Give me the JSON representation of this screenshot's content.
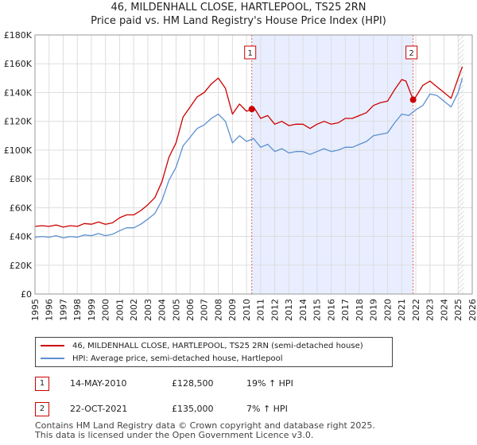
{
  "chart_data": {
    "type": "line",
    "title": "46, MILDENHALL CLOSE, HARTLEPOOL, TS25 2RN",
    "subtitle": "Price paid vs. HM Land Registry's House Price Index (HPI)",
    "xlabel": "",
    "ylabel": "",
    "xlim": [
      1995,
      2026
    ],
    "ylim": [
      0,
      180000
    ],
    "x_ticks": [
      "1995",
      "1996",
      "1997",
      "1998",
      "1999",
      "2000",
      "2001",
      "2002",
      "2003",
      "2004",
      "2005",
      "2006",
      "2007",
      "2008",
      "2009",
      "2010",
      "2011",
      "2012",
      "2013",
      "2014",
      "2015",
      "2016",
      "2017",
      "2018",
      "2019",
      "2020",
      "2021",
      "2022",
      "2023",
      "2024",
      "2025",
      "2026"
    ],
    "y_ticks": [
      {
        "value": 0,
        "label": "£0"
      },
      {
        "value": 20000,
        "label": "£20K"
      },
      {
        "value": 40000,
        "label": "£40K"
      },
      {
        "value": 60000,
        "label": "£60K"
      },
      {
        "value": 80000,
        "label": "£80K"
      },
      {
        "value": 100000,
        "label": "£100K"
      },
      {
        "value": 120000,
        "label": "£120K"
      },
      {
        "value": 140000,
        "label": "£140K"
      },
      {
        "value": 160000,
        "label": "£160K"
      },
      {
        "value": 180000,
        "label": "£180K"
      }
    ],
    "shaded_period": [
      2010.37,
      2021.81
    ],
    "future_hatch_from": 2025.0,
    "series": [
      {
        "name": "46, MILDENHALL CLOSE, HARTLEPOOL, TS25 2RN (semi-detached house)",
        "color": "#cc0000",
        "x": [
          1995,
          1995.5,
          1996,
          1996.5,
          1997,
          1997.5,
          1998,
          1998.5,
          1999,
          1999.5,
          2000,
          2000.5,
          2001,
          2001.5,
          2002,
          2002.5,
          2003,
          2003.5,
          2004,
          2004.5,
          2005,
          2005.5,
          2006,
          2006.5,
          2007,
          2007.5,
          2008,
          2008.5,
          2009,
          2009.5,
          2010,
          2010.37,
          2010.5,
          2011,
          2011.5,
          2012,
          2012.5,
          2013,
          2013.5,
          2014,
          2014.5,
          2015,
          2015.5,
          2016,
          2016.5,
          2017,
          2017.5,
          2018,
          2018.5,
          2019,
          2019.5,
          2020,
          2020.5,
          2021,
          2021.3,
          2021.81,
          2022,
          2022.5,
          2023,
          2023.5,
          2024,
          2024.5,
          2025,
          2025.3
        ],
        "values": [
          47000,
          47500,
          47000,
          48000,
          46500,
          47500,
          47000,
          49000,
          48500,
          50000,
          48500,
          49500,
          53000,
          55000,
          55000,
          58000,
          62000,
          67000,
          78000,
          95000,
          105000,
          123000,
          130000,
          137000,
          140000,
          146000,
          150000,
          143000,
          125000,
          132000,
          127000,
          128500,
          130000,
          122000,
          124000,
          118000,
          120000,
          117000,
          118000,
          118000,
          115000,
          118000,
          120000,
          118000,
          119000,
          122000,
          122000,
          124000,
          126000,
          131000,
          133000,
          134000,
          142000,
          149000,
          148000,
          135000,
          137000,
          145000,
          148000,
          144000,
          140000,
          136000,
          150000,
          158000
        ]
      },
      {
        "name": "HPI: Average price, semi-detached house, Hartlepool",
        "color": "#5b8fd0",
        "x": [
          1995,
          1995.5,
          1996,
          1996.5,
          1997,
          1997.5,
          1998,
          1998.5,
          1999,
          1999.5,
          2000,
          2000.5,
          2001,
          2001.5,
          2002,
          2002.5,
          2003,
          2003.5,
          2004,
          2004.5,
          2005,
          2005.5,
          2006,
          2006.5,
          2007,
          2007.5,
          2008,
          2008.5,
          2009,
          2009.5,
          2010,
          2010.5,
          2011,
          2011.5,
          2012,
          2012.5,
          2013,
          2013.5,
          2014,
          2014.5,
          2015,
          2015.5,
          2016,
          2016.5,
          2017,
          2017.5,
          2018,
          2018.5,
          2019,
          2019.5,
          2020,
          2020.5,
          2021,
          2021.5,
          2022,
          2022.5,
          2023,
          2023.5,
          2024,
          2024.5,
          2025,
          2025.3
        ],
        "values": [
          39500,
          40000,
          39500,
          40500,
          39000,
          40000,
          39500,
          41000,
          40500,
          42000,
          40500,
          41500,
          44000,
          46000,
          46000,
          48500,
          52000,
          56000,
          65000,
          79000,
          88000,
          103000,
          109000,
          115000,
          117500,
          122000,
          125000,
          120000,
          105000,
          110000,
          106000,
          108000,
          102000,
          104000,
          99000,
          101000,
          98000,
          99000,
          99000,
          97000,
          99000,
          101000,
          99000,
          100000,
          102000,
          102000,
          104000,
          106000,
          110000,
          111000,
          112000,
          119000,
          125000,
          124000,
          128000,
          131000,
          139000,
          138000,
          134000,
          130000,
          140000,
          150000
        ]
      }
    ],
    "markers": [
      {
        "label": "1",
        "x": 2010.37,
        "y": 128500,
        "series": 0
      },
      {
        "label": "2",
        "x": 2021.81,
        "y": 135000,
        "series": 0
      }
    ]
  },
  "legend": {
    "property_label": "46, MILDENHALL CLOSE, HARTLEPOOL, TS25 2RN (semi-detached house)",
    "hpi_label": "HPI: Average price, semi-detached house, Hartlepool"
  },
  "sales": [
    {
      "num": "1",
      "date": "14-MAY-2010",
      "price": "£128,500",
      "hpi": "19% ↑ HPI"
    },
    {
      "num": "2",
      "date": "22-OCT-2021",
      "price": "£135,000",
      "hpi": "7% ↑ HPI"
    }
  ],
  "footer": {
    "line1": "Contains HM Land Registry data © Crown copyright and database right 2025.",
    "line2": "This data is licensed under the Open Government Licence v3.0."
  },
  "colors": {
    "property": "#cc0000",
    "hpi": "#5b8fd0",
    "shade": "#e8eeff",
    "grid": "#dddddd"
  }
}
